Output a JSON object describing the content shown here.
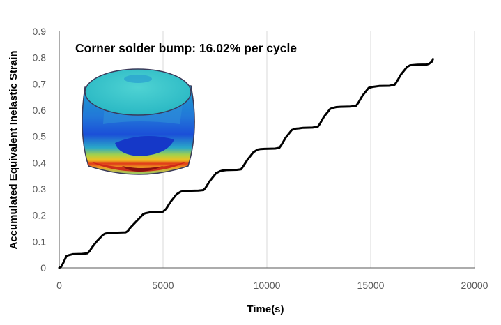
{
  "chart_data": {
    "type": "line",
    "title": "",
    "annotation": "Corner solder bump: 16.02% per cycle",
    "xlabel": "Time(s)",
    "ylabel": "Accumulated  Equivalent  Inelastic  Strain",
    "xlim": [
      0,
      20000
    ],
    "ylim": [
      0,
      0.9
    ],
    "x_ticks": [
      0,
      5000,
      10000,
      15000,
      20000
    ],
    "y_ticks": [
      0,
      0.1,
      0.2,
      0.3,
      0.4,
      0.5,
      0.6,
      0.7,
      0.8,
      0.9
    ],
    "grid": "vertical",
    "line_color": "#000000",
    "series": [
      {
        "x": [
          0,
          100,
          200,
          350,
          450,
          650,
          1100,
          1350,
          1450,
          1600,
          1800,
          2100,
          2200,
          2400,
          2800,
          3200,
          3300,
          3450,
          3750,
          4050,
          4150,
          4350,
          4800,
          5000,
          5150,
          5350,
          5650,
          5850,
          6000,
          6200,
          6700,
          6950,
          7050,
          7250,
          7550,
          7750,
          7850,
          8050,
          8550,
          8750,
          8850,
          9050,
          9350,
          9550,
          9700,
          9900,
          10400,
          10600,
          10700,
          10900,
          11200,
          11400,
          11550,
          11750,
          12200,
          12450,
          12550,
          12750,
          13050,
          13250,
          13350,
          13550,
          14050,
          14300,
          14400,
          14600,
          14900,
          15100,
          15200,
          15400,
          15900,
          16150,
          16250,
          16450,
          16750,
          16900,
          17050,
          17250,
          17700,
          17800,
          17950,
          18000
        ],
        "y": [
          0,
          0.005,
          0.02,
          0.045,
          0.048,
          0.052,
          0.053,
          0.055,
          0.062,
          0.08,
          0.1,
          0.125,
          0.13,
          0.133,
          0.134,
          0.135,
          0.14,
          0.155,
          0.18,
          0.205,
          0.208,
          0.211,
          0.212,
          0.214,
          0.225,
          0.25,
          0.28,
          0.29,
          0.292,
          0.293,
          0.294,
          0.296,
          0.305,
          0.33,
          0.36,
          0.368,
          0.37,
          0.372,
          0.373,
          0.375,
          0.385,
          0.41,
          0.44,
          0.45,
          0.452,
          0.453,
          0.454,
          0.457,
          0.468,
          0.495,
          0.525,
          0.53,
          0.531,
          0.533,
          0.534,
          0.537,
          0.548,
          0.575,
          0.605,
          0.61,
          0.612,
          0.613,
          0.614,
          0.617,
          0.628,
          0.655,
          0.685,
          0.689,
          0.69,
          0.692,
          0.693,
          0.697,
          0.708,
          0.735,
          0.765,
          0.771,
          0.772,
          0.773,
          0.774,
          0.776,
          0.785,
          0.795
        ]
      }
    ]
  }
}
